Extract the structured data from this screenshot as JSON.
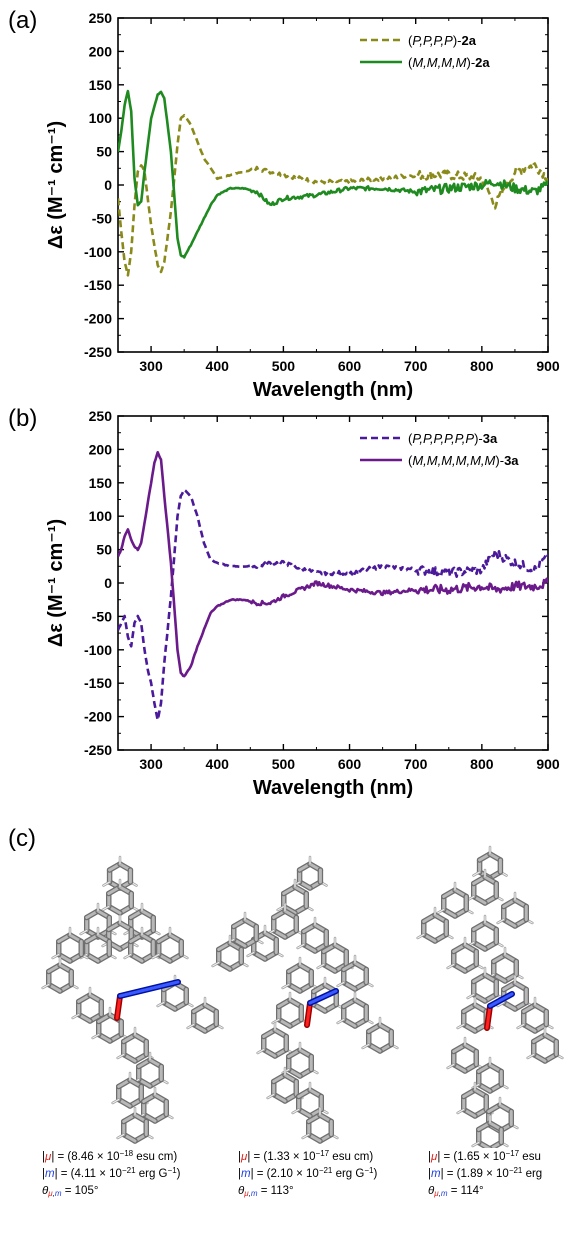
{
  "panels": {
    "a": {
      "letter": "(a)"
    },
    "b": {
      "letter": "(b)"
    },
    "c": {
      "letter": "(c)"
    }
  },
  "legend_a": [
    {
      "prefix": "(",
      "ital": "P,P,P,P",
      "mid": ")-",
      "bold": "2a"
    },
    {
      "prefix": "(",
      "ital": "M,M,M,M",
      "mid": ")-",
      "bold": "2a"
    }
  ],
  "legend_b": [
    {
      "prefix": "(",
      "ital": "P,P,P,P,P,P",
      "mid": ")-",
      "bold": "3a"
    },
    {
      "prefix": "(",
      "ital": "M,M,M,M,M,M",
      "mid": ")-",
      "bold": "3a"
    }
  ],
  "colors": {
    "2a_P": "#8a8a1a",
    "2a_M": "#1f8a1f",
    "3a_P": "#4a1a9a",
    "3a_M": "#6a1a8a",
    "mu": "#e0201a",
    "m": "#2040e0"
  },
  "chart_data": [
    {
      "type": "line",
      "panel": "a",
      "xlabel": "Wavelength (nm)",
      "ylabel": "Δε (M⁻¹ cm⁻¹)",
      "xlim": [
        250,
        900
      ],
      "ylim": [
        -250,
        250
      ],
      "xticks": [
        300,
        400,
        500,
        600,
        700,
        800,
        900
      ],
      "yticks": [
        -250,
        -200,
        -150,
        -100,
        -50,
        0,
        50,
        100,
        150,
        200,
        250
      ],
      "legend": "top-right",
      "series": [
        {
          "name": "(P,P,P,P)-2a",
          "style": "dashed",
          "color": "#8a8a1a",
          "x": [
            250,
            255,
            260,
            265,
            270,
            275,
            280,
            285,
            290,
            300,
            310,
            315,
            320,
            330,
            340,
            345,
            350,
            360,
            370,
            380,
            390,
            400,
            420,
            440,
            460,
            480,
            500,
            550,
            600,
            650,
            700,
            750,
            800,
            820,
            850,
            880,
            900
          ],
          "y": [
            -20,
            -70,
            -115,
            -135,
            -100,
            -30,
            20,
            30,
            20,
            -60,
            -120,
            -130,
            -115,
            -40,
            60,
            100,
            105,
            90,
            65,
            40,
            25,
            10,
            15,
            20,
            25,
            20,
            15,
            5,
            5,
            10,
            15,
            15,
            10,
            -30,
            20,
            30,
            10
          ]
        },
        {
          "name": "(M,M,M,M)-2a",
          "style": "solid",
          "color": "#1f8a1f",
          "x": [
            250,
            255,
            260,
            265,
            270,
            275,
            280,
            285,
            290,
            300,
            310,
            315,
            320,
            330,
            340,
            345,
            350,
            360,
            370,
            380,
            390,
            400,
            420,
            440,
            460,
            480,
            500,
            550,
            600,
            650,
            700,
            750,
            800,
            820,
            850,
            880,
            900
          ],
          "y": [
            50,
            80,
            120,
            140,
            110,
            10,
            -30,
            -25,
            20,
            100,
            135,
            140,
            130,
            50,
            -80,
            -105,
            -108,
            -90,
            -70,
            -50,
            -30,
            -15,
            -5,
            -5,
            -10,
            -30,
            -20,
            -15,
            -5,
            -5,
            -10,
            -5,
            0,
            5,
            -5,
            -10,
            0
          ]
        }
      ]
    },
    {
      "type": "line",
      "panel": "b",
      "xlabel": "Wavelength (nm)",
      "ylabel": "Δε (M⁻¹ cm⁻¹)",
      "xlim": [
        250,
        900
      ],
      "ylim": [
        -250,
        250
      ],
      "xticks": [
        300,
        400,
        500,
        600,
        700,
        800,
        900
      ],
      "yticks": [
        -250,
        -200,
        -150,
        -100,
        -50,
        0,
        50,
        100,
        150,
        200,
        250
      ],
      "legend": "top-right",
      "series": [
        {
          "name": "(P,P,P,P,P,P)-3a",
          "style": "dashed",
          "color": "#4a1a9a",
          "x": [
            250,
            255,
            260,
            265,
            270,
            275,
            280,
            285,
            290,
            295,
            300,
            305,
            310,
            315,
            320,
            330,
            340,
            345,
            350,
            360,
            370,
            380,
            390,
            400,
            420,
            440,
            460,
            480,
            500,
            550,
            600,
            650,
            700,
            750,
            800,
            820,
            850,
            880,
            900
          ],
          "y": [
            -70,
            -60,
            -50,
            -80,
            -95,
            -60,
            -50,
            -60,
            -100,
            -130,
            -150,
            -180,
            -205,
            -180,
            -120,
            -20,
            100,
            130,
            140,
            130,
            100,
            60,
            35,
            30,
            25,
            25,
            25,
            30,
            30,
            15,
            15,
            25,
            20,
            15,
            20,
            45,
            30,
            20,
            40
          ]
        },
        {
          "name": "(M,M,M,M,M,M)-3a",
          "style": "solid",
          "color": "#6a1a8a",
          "x": [
            250,
            255,
            260,
            265,
            270,
            275,
            280,
            285,
            290,
            295,
            300,
            305,
            310,
            315,
            320,
            330,
            340,
            345,
            350,
            360,
            370,
            380,
            390,
            400,
            420,
            440,
            460,
            480,
            500,
            550,
            600,
            650,
            700,
            750,
            800,
            820,
            850,
            880,
            900
          ],
          "y": [
            40,
            50,
            70,
            80,
            65,
            55,
            50,
            60,
            90,
            120,
            150,
            180,
            195,
            185,
            130,
            30,
            -100,
            -135,
            -140,
            -125,
            -95,
            -70,
            -45,
            -35,
            -25,
            -25,
            -30,
            -30,
            -20,
            0,
            -10,
            -15,
            -10,
            -10,
            -5,
            -10,
            -5,
            -5,
            0
          ]
        }
      ]
    }
  ],
  "molecules": [
    {
      "mu": {
        "open": "|",
        "sym": "μ",
        "close": "| = (",
        "val": "8.46 × 10",
        "exp": "−18",
        "unit": " esu cm)"
      },
      "m": {
        "open": "|",
        "sym": "m",
        "close": "| = (",
        "val": "4.11 × 10",
        "exp": "−21",
        "unit": " erg G",
        "unit_exp": "−1",
        "tail": ")"
      },
      "theta": {
        "sym": "θ",
        "sub_mu": "μ",
        "sub_sep": ",",
        "sub_m": "m",
        "val": " = 105°"
      }
    },
    {
      "mu": {
        "open": "|",
        "sym": "μ",
        "close": "| = (",
        "val": "1.33 × 10",
        "exp": "−17",
        "unit": " esu cm)"
      },
      "m": {
        "open": "|",
        "sym": "m",
        "close": "| = (",
        "val": "2.10 × 10",
        "exp": "−21",
        "unit": " erg G",
        "unit_exp": "−1",
        "tail": ")"
      },
      "theta": {
        "sym": "θ",
        "sub_mu": "μ",
        "sub_sep": ",",
        "sub_m": "m",
        "val": " = 113°"
      }
    },
    {
      "mu": {
        "open": "|",
        "sym": "μ",
        "close": "| = (",
        "val": "1.65 × 10",
        "exp": "−17",
        "unit": " esu"
      },
      "m": {
        "open": "|",
        "sym": "m",
        "close": "| = (",
        "val": "1.89 × 10",
        "exp": "−21",
        "unit": " erg",
        "unit_exp": "",
        "tail": ""
      },
      "theta": {
        "sym": "θ",
        "sub_mu": "μ",
        "sub_sep": ",",
        "sub_m": "m",
        "val": " = 114°"
      }
    }
  ]
}
